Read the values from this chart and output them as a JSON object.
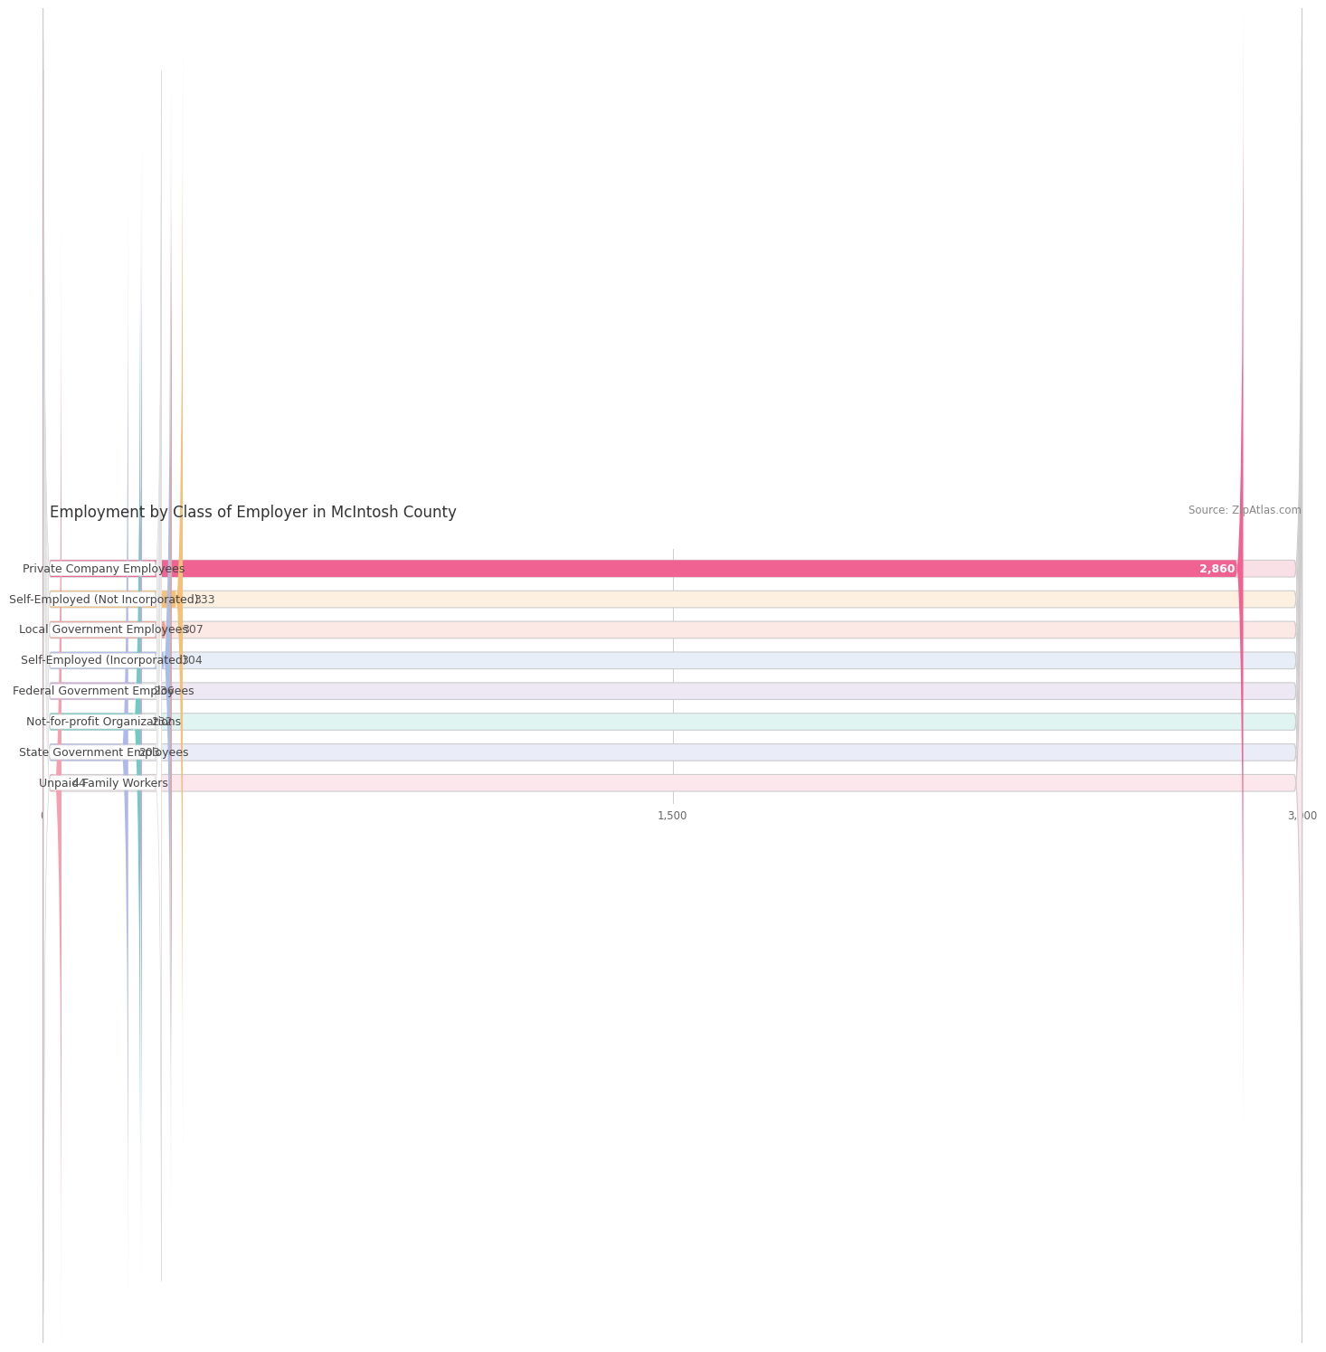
{
  "title": "Employment by Class of Employer in McIntosh County",
  "source": "Source: ZipAtlas.com",
  "categories": [
    "Private Company Employees",
    "Self-Employed (Not Incorporated)",
    "Local Government Employees",
    "Self-Employed (Incorporated)",
    "Federal Government Employees",
    "Not-for-profit Organizations",
    "State Government Employees",
    "Unpaid Family Workers"
  ],
  "values": [
    2860,
    333,
    307,
    304,
    236,
    232,
    203,
    44
  ],
  "bar_colors": [
    "#f06292",
    "#f5c07a",
    "#f0a090",
    "#a8bfe8",
    "#c8a8d8",
    "#6ecdc0",
    "#b0b8e8",
    "#f4a0b0"
  ],
  "bar_bg_colors": [
    "#f8e0e6",
    "#fdf0e0",
    "#fce8e4",
    "#e8eef8",
    "#ede8f4",
    "#e0f4f2",
    "#eaedf8",
    "#fce8ec"
  ],
  "xlim": [
    0,
    3000
  ],
  "xticks": [
    0,
    1500,
    3000
  ],
  "background_color": "#ffffff",
  "bar_height": 0.55,
  "bar_gap": 1.0,
  "title_fontsize": 12,
  "source_fontsize": 8.5,
  "label_fontsize": 9,
  "value_fontsize": 9
}
